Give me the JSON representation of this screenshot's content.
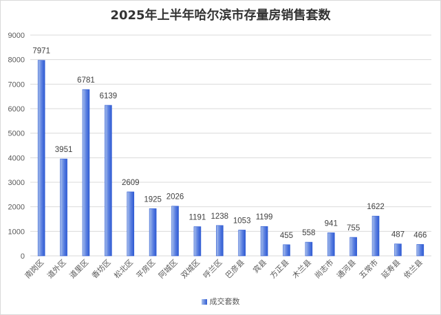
{
  "chart_data": {
    "type": "bar",
    "title": "2025年上半年哈尔滨市存量房销售套数",
    "categories": [
      "南岗区",
      "道外区",
      "道里区",
      "香坊区",
      "松北区",
      "平房区",
      "阿城区",
      "双城区",
      "呼兰区",
      "巴彦县",
      "宾县",
      "方正县",
      "木兰县",
      "尚志市",
      "通河县",
      "五常市",
      "延寿县",
      "依兰县"
    ],
    "series": [
      {
        "name": "成交套数",
        "values": [
          7971,
          3951,
          6781,
          6139,
          2609,
          1925,
          2026,
          1191,
          1238,
          1053,
          1199,
          455,
          558,
          941,
          755,
          1622,
          487,
          466
        ]
      }
    ],
    "ylim": [
      0,
      9000
    ],
    "yticks": [
      0,
      1000,
      2000,
      3000,
      4000,
      5000,
      6000,
      7000,
      8000,
      9000
    ],
    "grid": true,
    "legend": "bottom",
    "colors": {
      "bar_light": "#a9c0ec",
      "bar_dark": "#2f5bd3",
      "grid": "#d9d9d9"
    }
  }
}
